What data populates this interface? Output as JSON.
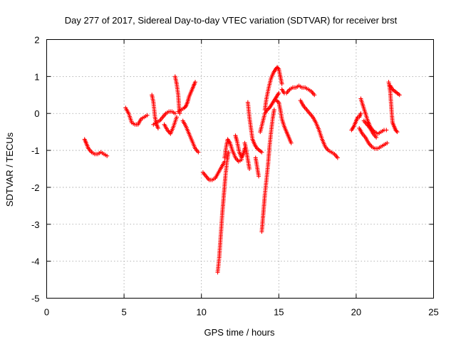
{
  "chart_data": {
    "type": "scatter",
    "title": "Day 277 of 2017, Sidereal Day-to-day VTEC variation (SDTVAR) for receiver brst",
    "xlabel": "GPS time / hours",
    "ylabel": "SDTVAR / TECUs",
    "xlim": [
      0,
      25
    ],
    "ylim": [
      -5,
      2
    ],
    "xticks": [
      "0",
      "5",
      "10",
      "15",
      "20",
      "25"
    ],
    "yticks": [
      "-5",
      "-4",
      "-3",
      "-2",
      "-1",
      "0",
      "1",
      "2"
    ],
    "grid": true,
    "marker": "+",
    "color": "#ff0000",
    "series": [
      {
        "name": "SDTVAR",
        "segments": [
          [
            [
              2.45,
              -0.7
            ],
            [
              2.55,
              -0.8
            ],
            [
              2.7,
              -0.95
            ],
            [
              2.9,
              -1.05
            ],
            [
              3.1,
              -1.1
            ],
            [
              3.3,
              -1.1
            ],
            [
              3.5,
              -1.05
            ],
            [
              3.7,
              -1.1
            ],
            [
              3.9,
              -1.15
            ]
          ],
          [
            [
              5.1,
              0.15
            ],
            [
              5.3,
              0.0
            ],
            [
              5.5,
              -0.25
            ],
            [
              5.7,
              -0.3
            ],
            [
              5.9,
              -0.3
            ],
            [
              6.1,
              -0.15
            ],
            [
              6.3,
              -0.1
            ],
            [
              6.5,
              -0.05
            ]
          ],
          [
            [
              6.8,
              0.5
            ],
            [
              6.9,
              0.3
            ],
            [
              7.0,
              -0.1
            ],
            [
              7.1,
              -0.3
            ],
            [
              7.2,
              -0.4
            ]
          ],
          [
            [
              6.9,
              -0.3
            ],
            [
              7.1,
              -0.25
            ],
            [
              7.3,
              -0.2
            ],
            [
              7.5,
              -0.1
            ],
            [
              7.7,
              0.0
            ],
            [
              7.9,
              0.05
            ],
            [
              8.1,
              0.05
            ],
            [
              8.3,
              0.0
            ]
          ],
          [
            [
              7.6,
              -0.3
            ],
            [
              7.8,
              -0.45
            ],
            [
              8.0,
              -0.55
            ],
            [
              8.2,
              -0.35
            ],
            [
              8.4,
              -0.1
            ]
          ],
          [
            [
              8.3,
              1.0
            ],
            [
              8.4,
              0.8
            ],
            [
              8.5,
              0.5
            ],
            [
              8.55,
              0.2
            ],
            [
              8.6,
              0.0
            ]
          ],
          [
            [
              8.5,
              0.05
            ],
            [
              8.7,
              0.1
            ],
            [
              8.9,
              0.15
            ],
            [
              9.0,
              0.2
            ],
            [
              9.1,
              0.3
            ],
            [
              9.2,
              0.45
            ],
            [
              9.35,
              0.6
            ],
            [
              9.5,
              0.75
            ],
            [
              9.6,
              0.85
            ]
          ],
          [
            [
              8.8,
              -0.2
            ],
            [
              9.0,
              -0.35
            ],
            [
              9.2,
              -0.55
            ],
            [
              9.4,
              -0.75
            ],
            [
              9.6,
              -0.95
            ],
            [
              9.8,
              -1.05
            ]
          ],
          [
            [
              10.1,
              -1.6
            ],
            [
              10.3,
              -1.7
            ],
            [
              10.5,
              -1.8
            ],
            [
              10.7,
              -1.8
            ],
            [
              10.9,
              -1.75
            ],
            [
              11.1,
              -1.6
            ],
            [
              11.3,
              -1.45
            ],
            [
              11.5,
              -1.3
            ]
          ],
          [
            [
              11.05,
              -4.3
            ],
            [
              11.15,
              -3.9
            ],
            [
              11.25,
              -3.3
            ],
            [
              11.35,
              -2.7
            ],
            [
              11.45,
              -2.2
            ],
            [
              11.55,
              -1.7
            ],
            [
              11.65,
              -1.3
            ],
            [
              11.75,
              -1.05
            ]
          ],
          [
            [
              11.5,
              -1.2
            ],
            [
              11.6,
              -0.9
            ],
            [
              11.7,
              -0.7
            ],
            [
              11.85,
              -0.8
            ],
            [
              12.0,
              -1.0
            ],
            [
              12.2,
              -1.2
            ],
            [
              12.4,
              -1.3
            ],
            [
              12.6,
              -1.25
            ]
          ],
          [
            [
              12.2,
              -0.6
            ],
            [
              12.3,
              -0.75
            ],
            [
              12.45,
              -1.05
            ],
            [
              12.6,
              -1.2
            ],
            [
              12.7,
              -1.1
            ],
            [
              12.8,
              -0.95
            ]
          ],
          [
            [
              12.8,
              -0.8
            ],
            [
              12.9,
              -1.0
            ],
            [
              13.0,
              -1.25
            ],
            [
              13.1,
              -1.5
            ]
          ],
          [
            [
              13.0,
              0.3
            ],
            [
              13.1,
              -0.1
            ],
            [
              13.2,
              -0.4
            ],
            [
              13.3,
              -0.7
            ],
            [
              13.45,
              -0.85
            ],
            [
              13.6,
              -0.95
            ],
            [
              13.75,
              -1.0
            ],
            [
              13.9,
              -1.05
            ]
          ],
          [
            [
              13.5,
              -1.2
            ],
            [
              13.6,
              -1.45
            ],
            [
              13.7,
              -1.7
            ]
          ],
          [
            [
              13.9,
              -3.2
            ],
            [
              14.0,
              -2.7
            ],
            [
              14.1,
              -2.2
            ],
            [
              14.2,
              -1.8
            ],
            [
              14.3,
              -1.4
            ],
            [
              14.4,
              -0.9
            ],
            [
              14.5,
              -0.5
            ],
            [
              14.6,
              -0.15
            ],
            [
              14.7,
              0.1
            ]
          ],
          [
            [
              13.8,
              -0.5
            ],
            [
              13.95,
              -0.25
            ],
            [
              14.1,
              0.0
            ],
            [
              14.25,
              0.1
            ],
            [
              14.4,
              0.15
            ],
            [
              14.55,
              0.25
            ],
            [
              14.7,
              0.35
            ],
            [
              14.85,
              0.45
            ],
            [
              15.0,
              0.55
            ]
          ],
          [
            [
              14.1,
              0.1
            ],
            [
              14.2,
              0.4
            ],
            [
              14.35,
              0.7
            ],
            [
              14.5,
              0.95
            ],
            [
              14.65,
              1.1
            ],
            [
              14.8,
              1.2
            ],
            [
              14.9,
              1.25
            ],
            [
              15.0,
              1.2
            ],
            [
              15.1,
              1.0
            ],
            [
              15.2,
              0.8
            ]
          ],
          [
            [
              14.85,
              0.35
            ],
            [
              15.0,
              0.3
            ],
            [
              15.1,
              0.1
            ],
            [
              15.2,
              -0.15
            ],
            [
              15.35,
              -0.35
            ],
            [
              15.5,
              -0.5
            ],
            [
              15.65,
              -0.65
            ],
            [
              15.8,
              -0.8
            ]
          ],
          [
            [
              15.2,
              0.65
            ],
            [
              15.35,
              0.55
            ],
            [
              15.5,
              0.55
            ],
            [
              15.7,
              0.65
            ],
            [
              15.9,
              0.7
            ],
            [
              16.1,
              0.7
            ],
            [
              16.3,
              0.75
            ],
            [
              16.5,
              0.7
            ],
            [
              16.7,
              0.7
            ],
            [
              16.9,
              0.65
            ],
            [
              17.1,
              0.6
            ],
            [
              17.3,
              0.5
            ]
          ],
          [
            [
              16.4,
              0.35
            ],
            [
              16.6,
              0.2
            ],
            [
              16.8,
              0.1
            ],
            [
              17.0,
              0.0
            ],
            [
              17.2,
              -0.1
            ],
            [
              17.4,
              -0.25
            ],
            [
              17.6,
              -0.45
            ],
            [
              17.8,
              -0.7
            ],
            [
              18.0,
              -0.9
            ],
            [
              18.2,
              -1.0
            ],
            [
              18.4,
              -1.05
            ],
            [
              18.6,
              -1.1
            ],
            [
              18.8,
              -1.2
            ]
          ],
          [
            [
              19.7,
              -0.45
            ],
            [
              19.85,
              -0.35
            ],
            [
              20.0,
              -0.2
            ],
            [
              20.1,
              -0.1
            ],
            [
              20.2,
              -0.1
            ],
            [
              20.3,
              0.0
            ]
          ],
          [
            [
              20.2,
              -0.4
            ],
            [
              20.4,
              -0.55
            ],
            [
              20.6,
              -0.65
            ],
            [
              20.8,
              -0.8
            ],
            [
              21.0,
              -0.9
            ],
            [
              21.2,
              -0.95
            ],
            [
              21.4,
              -0.95
            ],
            [
              21.6,
              -0.9
            ],
            [
              21.8,
              -0.85
            ],
            [
              22.0,
              -0.8
            ]
          ],
          [
            [
              20.3,
              0.4
            ],
            [
              20.45,
              0.2
            ],
            [
              20.6,
              0.0
            ],
            [
              20.75,
              -0.2
            ],
            [
              20.9,
              -0.35
            ],
            [
              21.05,
              -0.45
            ],
            [
              21.2,
              -0.5
            ],
            [
              21.4,
              -0.55
            ],
            [
              21.6,
              -0.5
            ],
            [
              21.8,
              -0.45
            ],
            [
              21.95,
              -0.45
            ]
          ],
          [
            [
              20.5,
              -0.2
            ],
            [
              20.7,
              -0.3
            ],
            [
              20.9,
              -0.4
            ],
            [
              21.1,
              -0.55
            ],
            [
              21.3,
              -0.65
            ]
          ],
          [
            [
              22.1,
              0.85
            ],
            [
              22.2,
              0.6
            ],
            [
              22.3,
              0.0
            ],
            [
              22.35,
              -0.25
            ],
            [
              22.45,
              -0.35
            ],
            [
              22.55,
              -0.45
            ],
            [
              22.65,
              -0.5
            ]
          ],
          [
            [
              22.2,
              0.75
            ],
            [
              22.35,
              0.65
            ],
            [
              22.5,
              0.6
            ],
            [
              22.65,
              0.55
            ],
            [
              22.8,
              0.5
            ]
          ]
        ]
      }
    ]
  }
}
